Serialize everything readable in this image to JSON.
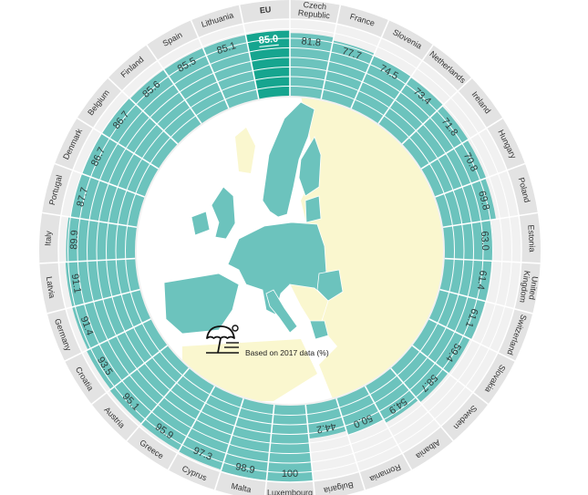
{
  "colors": {
    "ring_bg": "#e3e3e3",
    "band_bg": "#f1f1f1",
    "value_fill": "#6cc3bd",
    "highlight_fill": "#16a58f",
    "land_eu": "#6cc3bd",
    "land_other": "#faf7cf",
    "sea": "#ffffff",
    "grid_line": "#ffffff"
  },
  "map_caption": "Based on 2017 data (%)",
  "map_icon": "beach-umbrella-icon",
  "chart_data": {
    "type": "bar",
    "subtype": "radial",
    "ylim": [
      0,
      100
    ],
    "grid": true,
    "title": "",
    "categories": [
      "Luxembourg",
      "Malta",
      "Cyprus",
      "Greece",
      "Austria",
      "Croatia",
      "Germany",
      "Latvia",
      "Italy",
      "Portugal",
      "Denmark",
      "Belgium",
      "Finland",
      "Spain",
      "Lithuania",
      "EU",
      "Czech Republic",
      "France",
      "Slovenia",
      "Netherlands",
      "Ireland",
      "Hungary",
      "Poland",
      "Estonia",
      "United Kingdom",
      "Switzerland",
      "Slovakia",
      "Sweden",
      "Albania",
      "Romania",
      "Bulgaria"
    ],
    "values": [
      100,
      98.9,
      97.3,
      95.9,
      95.1,
      93.5,
      91.4,
      91.1,
      89.9,
      87.7,
      86.7,
      86.7,
      85.6,
      85.5,
      85.1,
      85.0,
      81.8,
      77.7,
      74.5,
      73.4,
      71.8,
      70.8,
      69.8,
      63.0,
      61.4,
      61.1,
      59.4,
      58.7,
      54.9,
      50.0,
      44.2
    ],
    "value_labels": [
      "100",
      "98.9",
      "97.3",
      "95.9",
      "95.1",
      "93.5",
      "91.4",
      "91.1",
      "89.9",
      "87.7",
      "86.7",
      "86.7",
      "85.6",
      "85.5",
      "85.1",
      "85.0",
      "81.8",
      "77.7",
      "74.5",
      "73.4",
      "71.8",
      "70.8",
      "69.8",
      "63.0",
      "61.4",
      "61.1",
      "59.4",
      "58.7",
      "54.9",
      "50.0",
      "44.2"
    ],
    "highlight": "EU"
  }
}
